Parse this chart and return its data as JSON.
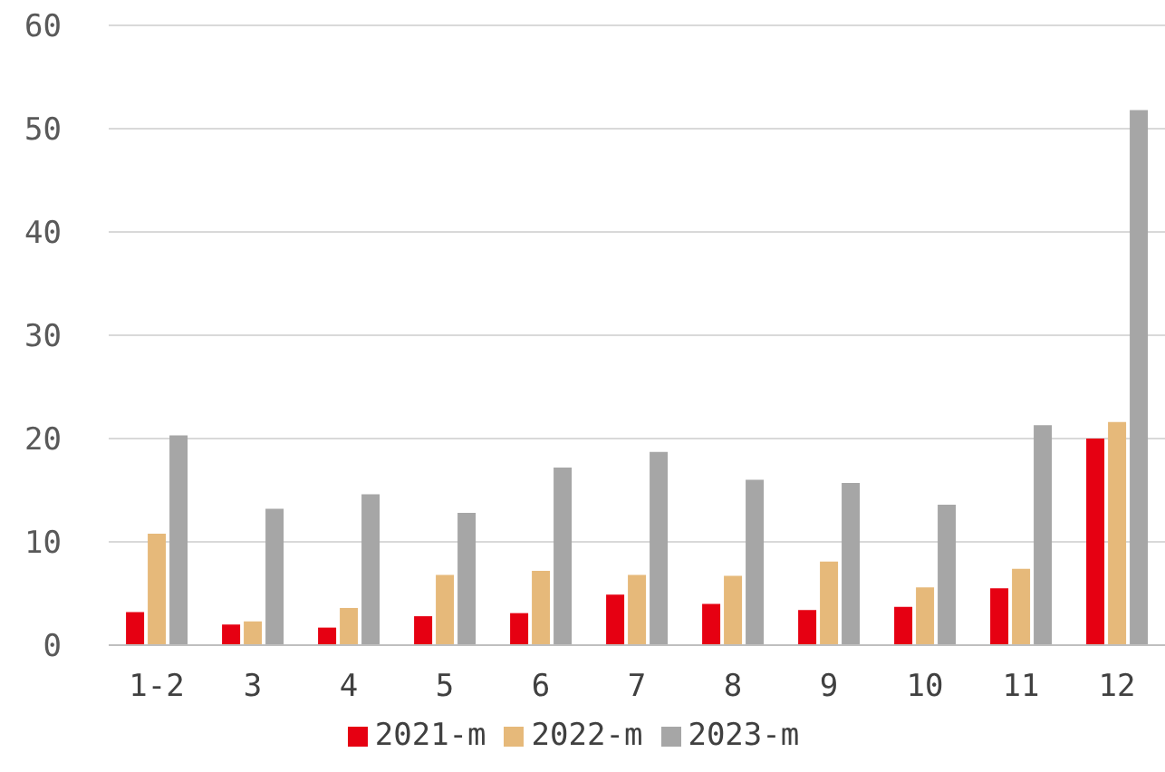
{
  "chart_data": {
    "type": "bar",
    "categories": [
      "1-2",
      "3",
      "4",
      "5",
      "6",
      "7",
      "8",
      "9",
      "10",
      "11",
      "12"
    ],
    "series": [
      {
        "name": "2021-m",
        "color": "#e60012",
        "values": [
          3.2,
          2.0,
          1.7,
          2.8,
          3.1,
          4.9,
          4.0,
          3.4,
          3.7,
          5.5,
          20.0
        ]
      },
      {
        "name": "2022-m",
        "color": "#e6b97a",
        "values": [
          10.8,
          2.3,
          3.6,
          6.8,
          7.2,
          6.8,
          6.7,
          8.1,
          5.6,
          7.4,
          21.6
        ]
      },
      {
        "name": "2023-m",
        "color": "#a6a6a6",
        "values": [
          20.3,
          13.2,
          14.6,
          12.8,
          17.2,
          18.7,
          16.0,
          15.7,
          13.6,
          21.3,
          51.8
        ]
      }
    ],
    "ylim": [
      0,
      60
    ],
    "yticks": [
      0,
      10,
      20,
      30,
      40,
      50,
      60
    ],
    "grid": "y",
    "legend": "bottom"
  }
}
